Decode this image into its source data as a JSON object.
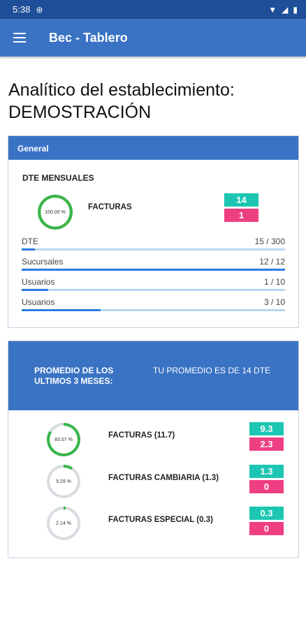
{
  "status_bar": {
    "time": "5:38"
  },
  "app_bar": {
    "title": "Bec - Tablero"
  },
  "page": {
    "title": "Analítico del establecimiento: DEMOSTRACIÓN"
  },
  "general": {
    "header": "General",
    "subtitle": "DTE MENSUALES",
    "gauge": {
      "label": "100.00 %",
      "percent": 100
    },
    "facturas_label": "FACTURAS",
    "badge_teal": "14",
    "badge_pink": "1",
    "stats": [
      {
        "label": "DTE",
        "value": "15 / 300",
        "fraction": 0.05
      },
      {
        "label": "Sucursales",
        "value": "12 / 12",
        "fraction": 1.0
      },
      {
        "label": "Usuarios",
        "value": "1 / 10",
        "fraction": 0.1
      },
      {
        "label": "Usuarios",
        "value": "3 / 10",
        "fraction": 0.3
      }
    ]
  },
  "promedio": {
    "header_left": "PROMEDIO DE LOS ULTIMOS 3 MESES:",
    "header_right": "TU PROMEDIO ES DE 14 DTE",
    "rows": [
      {
        "gauge_label": "83.57 %",
        "percent": 83.57,
        "label": "FACTURAS (11.7)",
        "teal": "9.3",
        "pink": "2.3"
      },
      {
        "gauge_label": "9.29 %",
        "percent": 9.29,
        "label": "FACTURAS CAMBIARIA (1.3)",
        "teal": "1.3",
        "pink": "0"
      },
      {
        "gauge_label": "2.14 %",
        "percent": 2.14,
        "label": "FACTURAS ESPECIAL (0.3)",
        "teal": "0.3",
        "pink": "0"
      }
    ]
  },
  "colors": {
    "primary": "#3a73c4",
    "status": "#1f4f98",
    "teal": "#1cc6b2",
    "pink": "#ee3f82",
    "gauge": "#3bb54a",
    "gauge_track": "#d9dde2"
  }
}
